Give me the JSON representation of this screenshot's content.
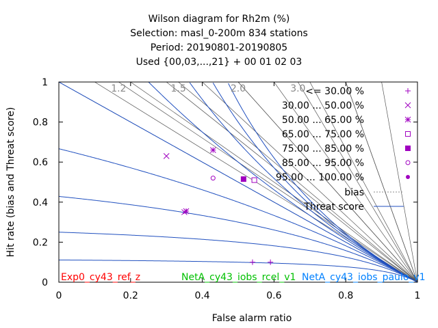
{
  "title_lines": [
    "Wilson diagram  for Rh2m (%)",
    "Selection: masl_0-200m    834 stations",
    "Period: 20190801-20190805",
    "Used {00,03,...,21} + 00 01 02 03"
  ],
  "experiments": [
    {
      "label": "Exp0_cy43_ref_z",
      "color": "#ff0000"
    },
    {
      "label": "NetA_cy43_iobs_rcel_v1",
      "color": "#00c000"
    },
    {
      "label": "NetA_cy43_iobs_paulo_v1",
      "color": "#0080ff"
    }
  ],
  "colors": {
    "threat_curve": "#1f4fbf",
    "bias_line": "#555555",
    "frame": "#000000",
    "points": "#a000c0"
  },
  "chart_data": {
    "type": "scatter",
    "xlabel": "False alarm ratio",
    "ylabel": "Hit rate (bias and Threat score)",
    "xlim": [
      0,
      1
    ],
    "ylim": [
      0,
      1
    ],
    "x_ticks": [
      "0",
      "0.2",
      "0.4",
      "0.6",
      "0.8",
      "1"
    ],
    "y_ticks": [
      "0",
      "0.2",
      "0.4",
      "0.6",
      "0.8",
      "1"
    ],
    "bias_labels": [
      "1.2",
      "1.5",
      "2.0",
      "3.0"
    ],
    "bias_values": [
      0.1,
      0.2,
      0.3,
      0.4,
      0.5,
      0.6,
      0.7,
      0.8,
      0.9,
      1.0,
      1.2,
      1.5,
      2.0,
      3.0,
      5.0
    ],
    "threat_values": [
      0.1,
      0.2,
      0.3,
      0.4,
      0.5,
      0.6,
      0.7,
      0.8,
      0.9
    ],
    "legend": {
      "placement": "top-right",
      "entries": [
        {
          "label": "<= 30.00 %",
          "marker": "plus"
        },
        {
          "label": "30.00 ... 50.00 %",
          "marker": "cross"
        },
        {
          "label": "50.00 ... 65.00 %",
          "marker": "star"
        },
        {
          "label": "65.00 ... 75.00 %",
          "marker": "open-square"
        },
        {
          "label": "75.00 ... 85.00 %",
          "marker": "filled-square"
        },
        {
          "label": "85.00 ... 95.00 %",
          "marker": "open-circle"
        },
        {
          "label": "95.00 ... 100.00 %",
          "marker": "filled-circle"
        },
        {
          "label": "bias",
          "marker": "dotted-line"
        },
        {
          "label": "Threat score",
          "marker": "solid-line"
        }
      ]
    },
    "series": [
      {
        "class": "<= 30.00 %",
        "marker": "plus",
        "points": [
          [
            0.54,
            0.1
          ],
          [
            0.59,
            0.1
          ]
        ]
      },
      {
        "class": "30.00 ... 50.00 %",
        "marker": "cross",
        "points": [
          [
            0.3,
            0.63
          ],
          [
            0.35,
            0.35
          ]
        ]
      },
      {
        "class": "50.00 ... 65.00 %",
        "marker": "star",
        "points": [
          [
            0.43,
            0.66
          ],
          [
            0.355,
            0.355
          ]
        ]
      },
      {
        "class": "65.00 ... 75.00 %",
        "marker": "open-square",
        "points": [
          [
            0.545,
            0.51
          ]
        ]
      },
      {
        "class": "75.00 ... 85.00 %",
        "marker": "filled-square",
        "points": [
          [
            0.515,
            0.515
          ]
        ]
      },
      {
        "class": "85.00 ... 95.00 %",
        "marker": "open-circle",
        "points": [
          [
            0.43,
            0.52
          ]
        ]
      }
    ]
  }
}
